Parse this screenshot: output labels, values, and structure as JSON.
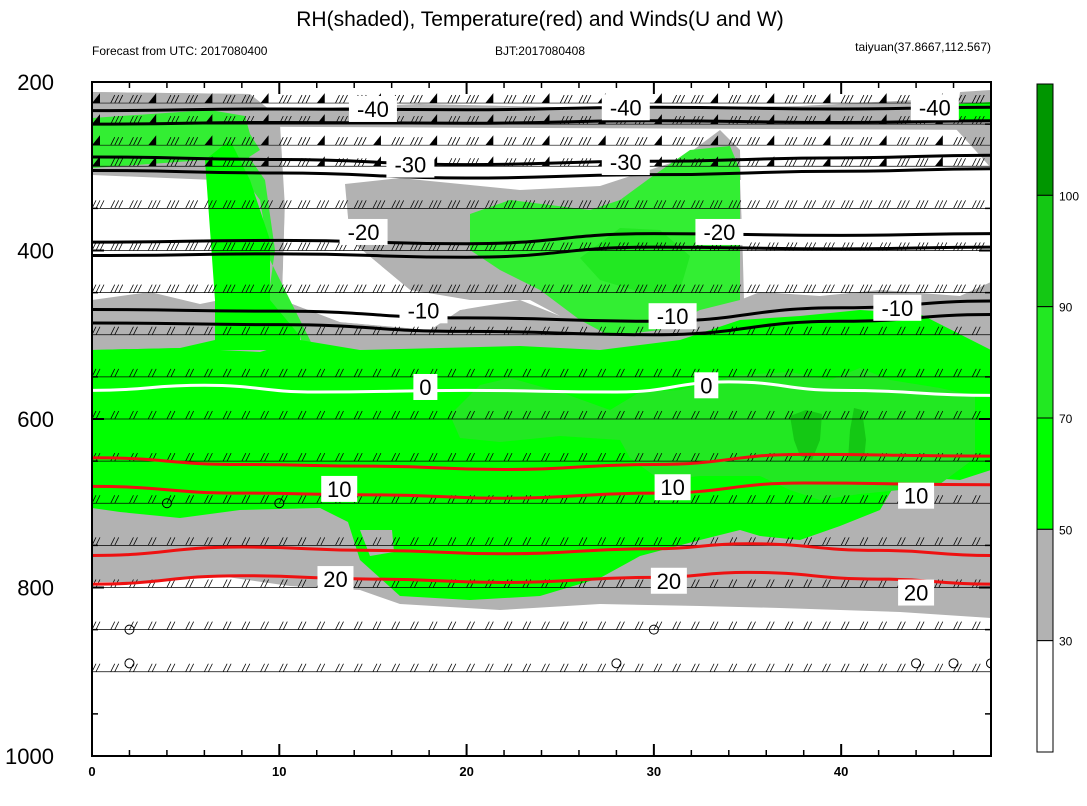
{
  "header": {
    "title": "RH(shaded), Temperature(red) and Winds(U and W)",
    "left": "Forecast from UTC: 2017080400",
    "center": "BJT:2017080408",
    "right": "taiyuan(37.8667,112.567)"
  },
  "chart_data": {
    "type": "contour",
    "xlim": [
      0,
      48
    ],
    "ylim": [
      200,
      1000
    ],
    "y_axis_reversed": true,
    "x_ticks": [
      0,
      10,
      20,
      30,
      40
    ],
    "x_tick_labels": [
      "0",
      "10",
      "20",
      "30",
      "40"
    ],
    "y_ticks": [
      200,
      400,
      600,
      800,
      1000
    ],
    "y_tick_labels": [
      "200",
      "400",
      "600",
      "800",
      "1000"
    ],
    "wind_levels": [
      225,
      250,
      275,
      300,
      350,
      400,
      450,
      500,
      550,
      600,
      650,
      700,
      750,
      800,
      850,
      900
    ],
    "colorbar": {
      "labels": [
        "30",
        "50",
        "70",
        "90",
        "100"
      ],
      "levels": [
        30,
        50,
        70,
        90,
        100
      ],
      "colors": [
        "#ffffff",
        "#b2b2b2",
        "#00ff00",
        "#22e822",
        "#14c814",
        "#009600"
      ]
    },
    "temperature_contours": [
      {
        "value": -40,
        "label": "-40",
        "points": [
          [
            0,
            234
          ],
          [
            10,
            232
          ],
          [
            20,
            233
          ],
          [
            30,
            230
          ],
          [
            40,
            232
          ],
          [
            48,
            230
          ]
        ]
      },
      {
        "value": -30,
        "label": "-30",
        "points": [
          [
            0,
            289
          ],
          [
            10,
            292
          ],
          [
            20,
            298
          ],
          [
            30,
            294
          ],
          [
            40,
            290
          ],
          [
            48,
            287
          ]
        ]
      },
      {
        "value": -20,
        "label": "-20",
        "points": [
          [
            0,
            390
          ],
          [
            10,
            388
          ],
          [
            20,
            392
          ],
          [
            30,
            380
          ],
          [
            40,
            382
          ],
          [
            48,
            380
          ]
        ]
      },
      {
        "value": -10,
        "label": "-10",
        "points": [
          [
            0,
            470
          ],
          [
            10,
            472
          ],
          [
            20,
            480
          ],
          [
            30,
            484
          ],
          [
            40,
            468
          ],
          [
            48,
            460
          ]
        ]
      },
      {
        "value": 0,
        "label": "0",
        "points": [
          [
            0,
            566
          ],
          [
            6,
            560
          ],
          [
            12,
            568
          ],
          [
            20,
            566
          ],
          [
            28,
            568
          ],
          [
            34,
            556
          ],
          [
            40,
            566
          ],
          [
            48,
            572
          ]
        ]
      },
      {
        "value": 10,
        "label": "10",
        "points": [
          [
            0,
            680
          ],
          [
            8,
            688
          ],
          [
            15,
            690
          ],
          [
            22,
            694
          ],
          [
            30,
            688
          ],
          [
            38,
            676
          ],
          [
            48,
            678
          ]
        ]
      },
      {
        "value": 20,
        "label": "20",
        "points": [
          [
            0,
            796
          ],
          [
            8,
            786
          ],
          [
            15,
            790
          ],
          [
            22,
            794
          ],
          [
            30,
            788
          ],
          [
            35,
            782
          ],
          [
            42,
            790
          ],
          [
            48,
            796
          ]
        ]
      }
    ],
    "temperature_labels": [
      {
        "text": "-40",
        "x": 15.0,
        "y": 232
      },
      {
        "text": "-40",
        "x": 28.5,
        "y": 230
      },
      {
        "text": "-40",
        "x": 45.0,
        "y": 230
      },
      {
        "text": "-30",
        "x": 17.0,
        "y": 298
      },
      {
        "text": "-30",
        "x": 28.5,
        "y": 295
      },
      {
        "text": "-20",
        "x": 14.5,
        "y": 378
      },
      {
        "text": "-20",
        "x": 33.5,
        "y": 378
      },
      {
        "text": "-10",
        "x": 17.7,
        "y": 471
      },
      {
        "text": "-10",
        "x": 31.0,
        "y": 478
      },
      {
        "text": "-10",
        "x": 43.0,
        "y": 468
      },
      {
        "text": "0",
        "x": 17.8,
        "y": 562
      },
      {
        "text": "0",
        "x": 32.8,
        "y": 560
      },
      {
        "text": "10",
        "x": 13.2,
        "y": 683
      },
      {
        "text": "10",
        "x": 31.0,
        "y": 681
      },
      {
        "text": "10",
        "x": 44.0,
        "y": 691
      },
      {
        "text": "20",
        "x": 13.0,
        "y": 790
      },
      {
        "text": "20",
        "x": 30.8,
        "y": 792
      },
      {
        "text": "20",
        "x": 44.0,
        "y": 806
      }
    ],
    "calm_markers": [
      [
        4,
        700
      ],
      [
        10,
        700
      ],
      [
        2,
        850
      ],
      [
        30,
        850
      ],
      [
        2,
        890
      ],
      [
        28,
        890
      ],
      [
        44,
        890
      ],
      [
        46,
        890
      ],
      [
        48,
        890
      ]
    ]
  }
}
